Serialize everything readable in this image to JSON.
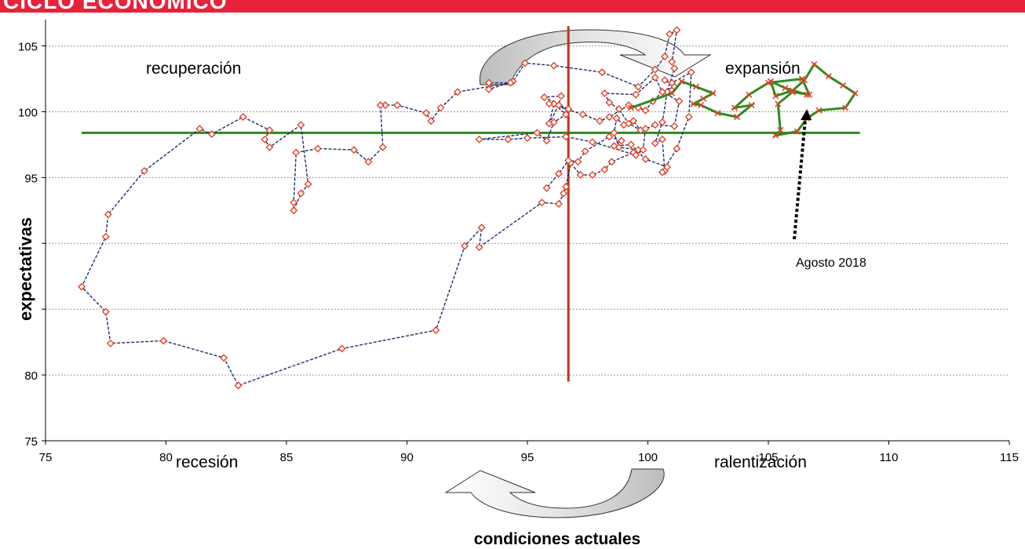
{
  "header": {
    "text": "CICLO ECONÓMICO"
  },
  "chart_data": {
    "type": "scatter",
    "xlabel": "condiciones actuales",
    "ylabel": "expectativas",
    "xlim": [
      75,
      115
    ],
    "ylim": [
      75,
      107
    ],
    "x_ticks": [
      75,
      80,
      85,
      90,
      95,
      100,
      105,
      110,
      115
    ],
    "y_ticks": [
      75,
      80,
      85,
      90,
      95,
      100,
      105
    ],
    "y_tick_labels": [
      "75",
      "80",
      "",
      "",
      "95",
      "100",
      "105"
    ],
    "grid": "horizontal",
    "quadrants": [
      "recuperación",
      "expansión",
      "recesión",
      "ralentización"
    ],
    "vertical_line": {
      "x": 96.7,
      "y_range": [
        79.5,
        106.5
      ]
    },
    "horizontal_line": {
      "y": 98.4,
      "x_range": [
        76.5,
        108.8
      ]
    },
    "annotation": {
      "text": "Agosto 2018",
      "arrow_to": [
        106.6,
        100.2
      ]
    },
    "colors": {
      "header": "#e8223a",
      "history_line": "#1f2d6e",
      "history_marker": "#e0442a",
      "recent_line": "#2e8b1e",
      "recent_marker": "#e0442a",
      "vline": "#c0321e",
      "hline": "#2e8b1e"
    },
    "series": [
      {
        "values_xy": [
          [
            100.7,
            95.5
          ],
          [
            100.6,
            97.9
          ],
          [
            100.3,
            97.6
          ],
          [
            100.6,
            99.2
          ],
          [
            100.8,
            101.5
          ],
          [
            101.1,
            103.3
          ],
          [
            101.0,
            103.8
          ],
          [
            101.2,
            106.2
          ],
          [
            100.9,
            105.9
          ],
          [
            100.7,
            104.2
          ],
          [
            100.3,
            103.2
          ],
          [
            99.6,
            101.9
          ],
          [
            98.1,
            103.0
          ],
          [
            96.1,
            103.5
          ],
          [
            94.9,
            103.7
          ],
          [
            94.4,
            102.3
          ],
          [
            93.4,
            101.7
          ],
          [
            93.4,
            102.2
          ],
          [
            94.3,
            102.2
          ],
          [
            92.1,
            101.5
          ],
          [
            91.4,
            100.3
          ],
          [
            91.0,
            99.3
          ],
          [
            90.8,
            99.9
          ],
          [
            89.6,
            100.5
          ],
          [
            89.1,
            100.5
          ],
          [
            88.9,
            100.5
          ],
          [
            89.0,
            97.3
          ],
          [
            88.4,
            96.2
          ],
          [
            87.8,
            97.1
          ],
          [
            86.3,
            97.2
          ],
          [
            85.4,
            96.9
          ],
          [
            85.3,
            93.1
          ],
          [
            85.3,
            92.5
          ],
          [
            85.6,
            93.8
          ],
          [
            85.9,
            94.5
          ],
          [
            85.6,
            99.0
          ],
          [
            84.3,
            97.3
          ],
          [
            84.1,
            97.9
          ],
          [
            84.3,
            98.6
          ],
          [
            83.2,
            99.6
          ],
          [
            81.9,
            98.3
          ],
          [
            81.4,
            98.7
          ],
          [
            79.1,
            95.5
          ],
          [
            77.6,
            92.2
          ],
          [
            77.5,
            90.5
          ],
          [
            76.5,
            86.7
          ],
          [
            77.5,
            84.8
          ],
          [
            77.7,
            82.4
          ],
          [
            79.9,
            82.6
          ],
          [
            82.4,
            81.3
          ],
          [
            83.0,
            79.2
          ],
          [
            87.3,
            82.0
          ],
          [
            91.2,
            83.4
          ],
          [
            92.4,
            89.8
          ],
          [
            93.1,
            91.2
          ],
          [
            93.0,
            89.7
          ],
          [
            95.6,
            93.1
          ],
          [
            96.3,
            93.0
          ],
          [
            96.5,
            93.8
          ],
          [
            96.6,
            94.3
          ],
          [
            96.8,
            96.1
          ],
          [
            97.2,
            95.2
          ],
          [
            97.7,
            95.2
          ],
          [
            98.2,
            95.6
          ],
          [
            98.5,
            96.2
          ],
          [
            99.4,
            96.9
          ],
          [
            99.6,
            97.1
          ],
          [
            98.8,
            97.3
          ],
          [
            98.6,
            98.4
          ],
          [
            98.7,
            99.5
          ],
          [
            99.0,
            99.0
          ],
          [
            99.4,
            99.3
          ],
          [
            99.7,
            98.6
          ],
          [
            99.2,
            99.1
          ],
          [
            98.8,
            100.2
          ],
          [
            98.4,
            100.7
          ],
          [
            98.2,
            101.4
          ],
          [
            99.5,
            101.3
          ],
          [
            100.3,
            102.6
          ],
          [
            100.6,
            101.5
          ],
          [
            101.3,
            100.8
          ],
          [
            101.1,
            98.9
          ],
          [
            100.3,
            99.0
          ],
          [
            99.9,
            98.7
          ],
          [
            99.8,
            97.1
          ],
          [
            99.5,
            96.7
          ],
          [
            97.7,
            97.7
          ],
          [
            96.6,
            98.1
          ],
          [
            95.0,
            98.0
          ],
          [
            94.2,
            97.9
          ],
          [
            93.0,
            97.9
          ],
          [
            95.4,
            98.4
          ],
          [
            95.8,
            97.8
          ],
          [
            96.1,
            99.2
          ],
          [
            96.6,
            99.8
          ],
          [
            96.1,
            100.6
          ],
          [
            95.9,
            99.1
          ],
          [
            96.3,
            100.5
          ],
          [
            96.4,
            101.2
          ],
          [
            95.7,
            101.1
          ],
          [
            96.7,
            100.2
          ],
          [
            95.9,
            100.6
          ],
          [
            97.3,
            99.8
          ],
          [
            98.0,
            99.3
          ],
          [
            98.4,
            99.6
          ],
          [
            99.2,
            100.5
          ],
          [
            99.6,
            100.3
          ],
          [
            99.9,
            100.1
          ],
          [
            100.2,
            100.8
          ],
          [
            100.6,
            101.5
          ],
          [
            101.1,
            101.9
          ],
          [
            100.7,
            102.4
          ],
          [
            101.0,
            102.2
          ],
          [
            101.8,
            103.0
          ],
          [
            101.7,
            99.6
          ],
          [
            101.2,
            97.2
          ],
          [
            100.6,
            95.4
          ],
          [
            100.8,
            95.8
          ],
          [
            99.9,
            96.4
          ],
          [
            99.3,
            97.5
          ],
          [
            98.6,
            97.4
          ],
          [
            98.9,
            97.8
          ],
          [
            98.4,
            98.1
          ],
          [
            97.4,
            97.0
          ],
          [
            97.1,
            96.2
          ],
          [
            96.7,
            96.3
          ],
          [
            96.3,
            95.3
          ],
          [
            95.8,
            94.2
          ]
        ]
      },
      {
        "values_xy": [
          [
            99.3,
            100.3
          ],
          [
            101.0,
            101.4
          ],
          [
            101.4,
            102.3
          ],
          [
            102.0,
            101.9
          ],
          [
            102.7,
            101.4
          ],
          [
            102.3,
            101.0
          ],
          [
            101.9,
            100.6
          ],
          [
            102.2,
            100.5
          ],
          [
            102.9,
            99.9
          ],
          [
            103.7,
            99.6
          ],
          [
            104.3,
            100.5
          ],
          [
            103.6,
            100.3
          ],
          [
            104.2,
            101.3
          ],
          [
            105.0,
            102.2
          ],
          [
            106.4,
            102.5
          ],
          [
            106.7,
            101.3
          ],
          [
            106.0,
            101.5
          ],
          [
            105.4,
            100.6
          ],
          [
            105.5,
            98.6
          ],
          [
            105.3,
            98.2
          ],
          [
            106.2,
            98.5
          ],
          [
            106.6,
            99.5
          ],
          [
            107.1,
            100.1
          ],
          [
            108.2,
            100.3
          ],
          [
            108.6,
            101.4
          ],
          [
            108.1,
            102.0
          ],
          [
            107.5,
            102.7
          ],
          [
            106.9,
            103.6
          ],
          [
            106.5,
            102.4
          ],
          [
            106.0,
            101.6
          ],
          [
            105.3,
            101.2
          ],
          [
            105.1,
            102.3
          ],
          [
            105.7,
            101.8
          ],
          [
            106.6,
            101.3
          ]
        ]
      }
    ]
  }
}
